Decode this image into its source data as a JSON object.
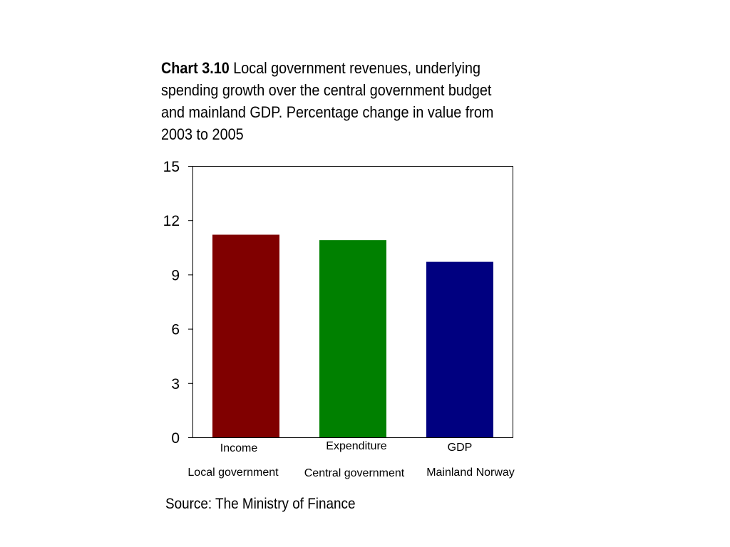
{
  "chart_data": {
    "type": "bar",
    "title_prefix": "Chart 3.10",
    "title": "Local government revenues, underlying spending growth over the central government budget and mainland GDP. Percentage change in value from 2003 to 2005",
    "categories": [
      "Income",
      "Expenditure",
      "GDP"
    ],
    "category_groups": [
      "Local government",
      "Central government",
      "Mainland Norway"
    ],
    "values": [
      11.2,
      10.9,
      9.7
    ],
    "colors": [
      "#800000",
      "#008000",
      "#000080"
    ],
    "ylim": [
      0,
      15
    ],
    "yticks": [
      0,
      3,
      6,
      9,
      12,
      15
    ],
    "xlabel": "",
    "ylabel": "",
    "grid": false,
    "source": "Source: The Ministry of Finance"
  }
}
